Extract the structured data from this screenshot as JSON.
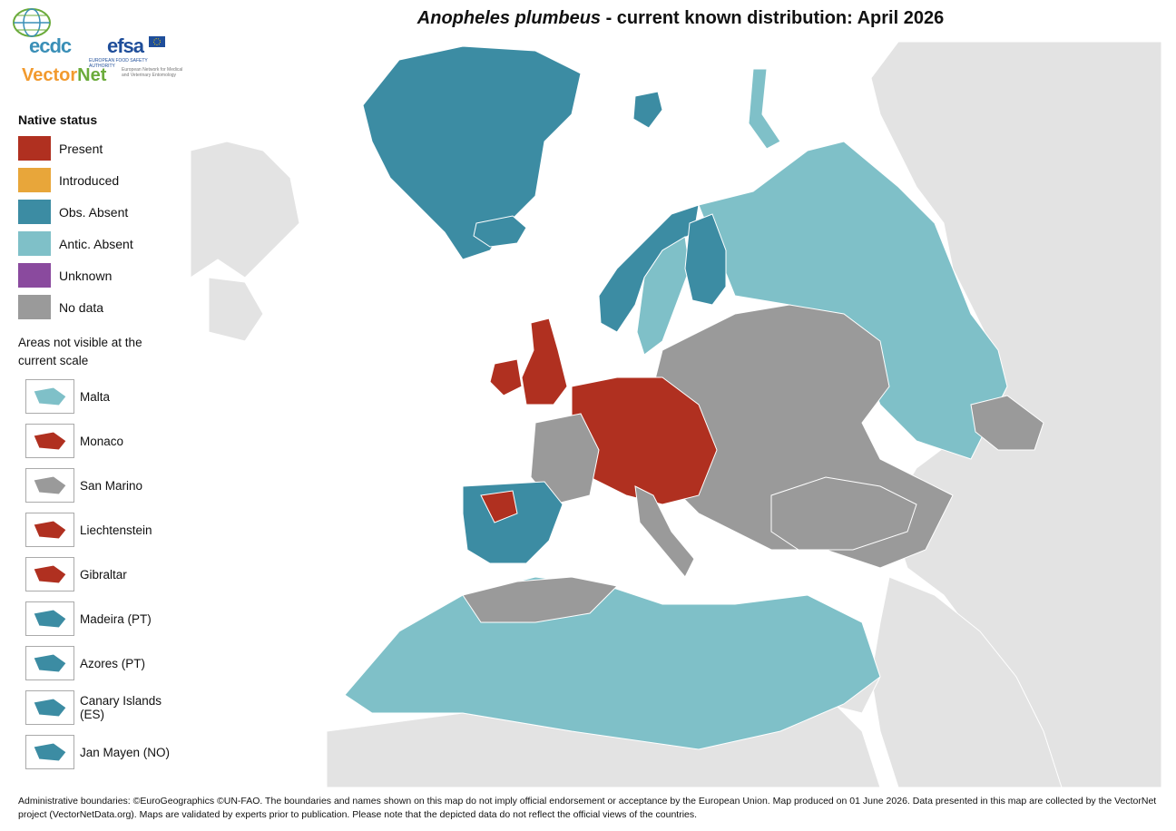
{
  "title": {
    "species": "Anopheles plumbeus",
    "rest": " - current known distribution: April 2026"
  },
  "logos": {
    "ecdc": "ecdc",
    "efsa": "efsa",
    "efsa_sub": "EUROPEAN FOOD SAFETY AUTHORITY",
    "vectornet_a": "Vector",
    "vectornet_b": "Net",
    "vectornet_sub": "European Network for Medical and Veterinary Entomology"
  },
  "legend": {
    "title": "Native status",
    "items": [
      {
        "label": "Present",
        "color": "#b03020"
      },
      {
        "label": "Introduced",
        "color": "#e8a63a"
      },
      {
        "label": "Obs. Absent",
        "color": "#3c8ca3"
      },
      {
        "label": "Antic. Absent",
        "color": "#7fc0c8"
      },
      {
        "label": "Unknown",
        "color": "#8a4a9e"
      },
      {
        "label": "No data",
        "color": "#9a9a9a"
      }
    ],
    "areas_title": "Areas not visible at the current scale",
    "areas": [
      {
        "label": "Malta",
        "status": "Antic. Absent"
      },
      {
        "label": "Monaco",
        "status": "Present"
      },
      {
        "label": "San Marino",
        "status": "No data"
      },
      {
        "label": "Liechtenstein",
        "status": "Present"
      },
      {
        "label": "Gibraltar",
        "status": "Present"
      },
      {
        "label": "Madeira (PT)",
        "status": "Obs. Absent"
      },
      {
        "label": "Azores (PT)",
        "status": "Obs. Absent"
      },
      {
        "label": "Canary Islands (ES)",
        "status": "Obs. Absent"
      },
      {
        "label": "Jan Mayen (NO)",
        "status": "Obs. Absent"
      }
    ]
  },
  "colors": {
    "sea": "#ffffff",
    "outside_land": "#e3e3e3",
    "border": "#ffffff"
  },
  "footer": "Administrative boundaries: ©EuroGeographics ©UN-FAO. The boundaries and names shown on this map do not imply official endorsement or acceptance by the European Union. Map produced on 01 June 2026. Data presented in this map are collected by the VectorNet project (VectorNetData.org). Maps are validated by experts prior to publication. Please note that the depicted data do not reflect the official views of the countries."
}
